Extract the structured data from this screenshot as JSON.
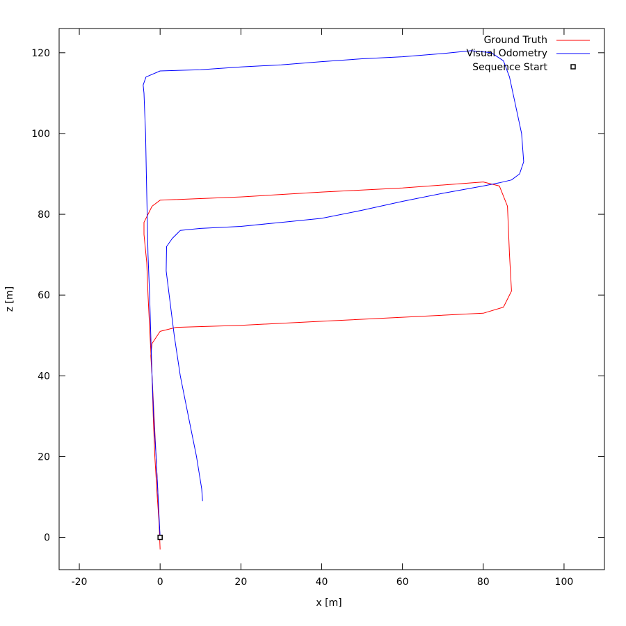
{
  "chart_data": {
    "type": "line",
    "title": "",
    "xlabel": "x [m]",
    "ylabel": "z [m]",
    "xlim": [
      -25,
      110
    ],
    "ylim": [
      -8,
      126
    ],
    "xticks": [
      -20,
      0,
      20,
      40,
      60,
      80,
      100
    ],
    "yticks": [
      0,
      20,
      40,
      60,
      80,
      100,
      120
    ],
    "grid": false,
    "legend": "top-right",
    "series": [
      {
        "name": "Ground Truth",
        "color": "#ff0000",
        "kind": "line",
        "x": [
          0,
          -0.5,
          -1,
          -1.5,
          -2,
          -2.3,
          -2,
          0,
          4,
          20,
          40,
          60,
          80,
          85,
          87,
          86.5,
          86,
          84,
          80,
          60,
          40,
          20,
          0,
          -2,
          -4,
          -4,
          -3.3,
          -3,
          -2.5,
          -2,
          -1.7,
          -1.3,
          -0.7,
          0
        ],
        "y": [
          -3,
          10,
          20,
          30,
          40,
          45,
          48,
          51,
          52,
          52.5,
          53.5,
          54.5,
          55.5,
          57,
          61,
          70,
          82,
          87,
          88,
          86.5,
          85.5,
          84.3,
          83.5,
          82,
          78,
          75,
          68,
          60,
          50,
          40,
          30,
          20,
          10,
          0
        ]
      },
      {
        "name": "Visual Odometry",
        "color": "#0000ff",
        "kind": "line",
        "x": [
          0,
          -0.5,
          -1,
          -1.6,
          -2,
          -2.3,
          -2.6,
          -3,
          -3.2,
          -3.4,
          -3.6,
          -3.8,
          -4,
          -4.2,
          -3.5,
          0,
          10,
          20,
          30,
          40,
          50,
          60,
          70,
          77,
          82,
          85,
          86.5,
          88,
          89.5,
          90,
          89,
          87,
          84,
          80,
          70,
          60,
          50,
          40,
          30,
          20,
          10,
          5,
          3,
          1.6,
          1.5,
          2.5,
          3.5,
          5,
          7,
          9,
          10.3,
          10.5
        ],
        "y": [
          0,
          10,
          20,
          30,
          40,
          50,
          60,
          70,
          80,
          90,
          100,
          105,
          110,
          112,
          114,
          115.5,
          115.8,
          116.5,
          117,
          117.8,
          118.5,
          119,
          119.8,
          120.5,
          120,
          118,
          114,
          107,
          100,
          93,
          90,
          88.5,
          87.8,
          87,
          85.2,
          83.2,
          81,
          79,
          78,
          77,
          76.5,
          76,
          74,
          72,
          66,
          58,
          50,
          40,
          30,
          20,
          12,
          9
        ]
      },
      {
        "name": "Sequence Start",
        "color": "#000000",
        "kind": "point",
        "x": [
          0
        ],
        "y": [
          0
        ]
      }
    ]
  }
}
